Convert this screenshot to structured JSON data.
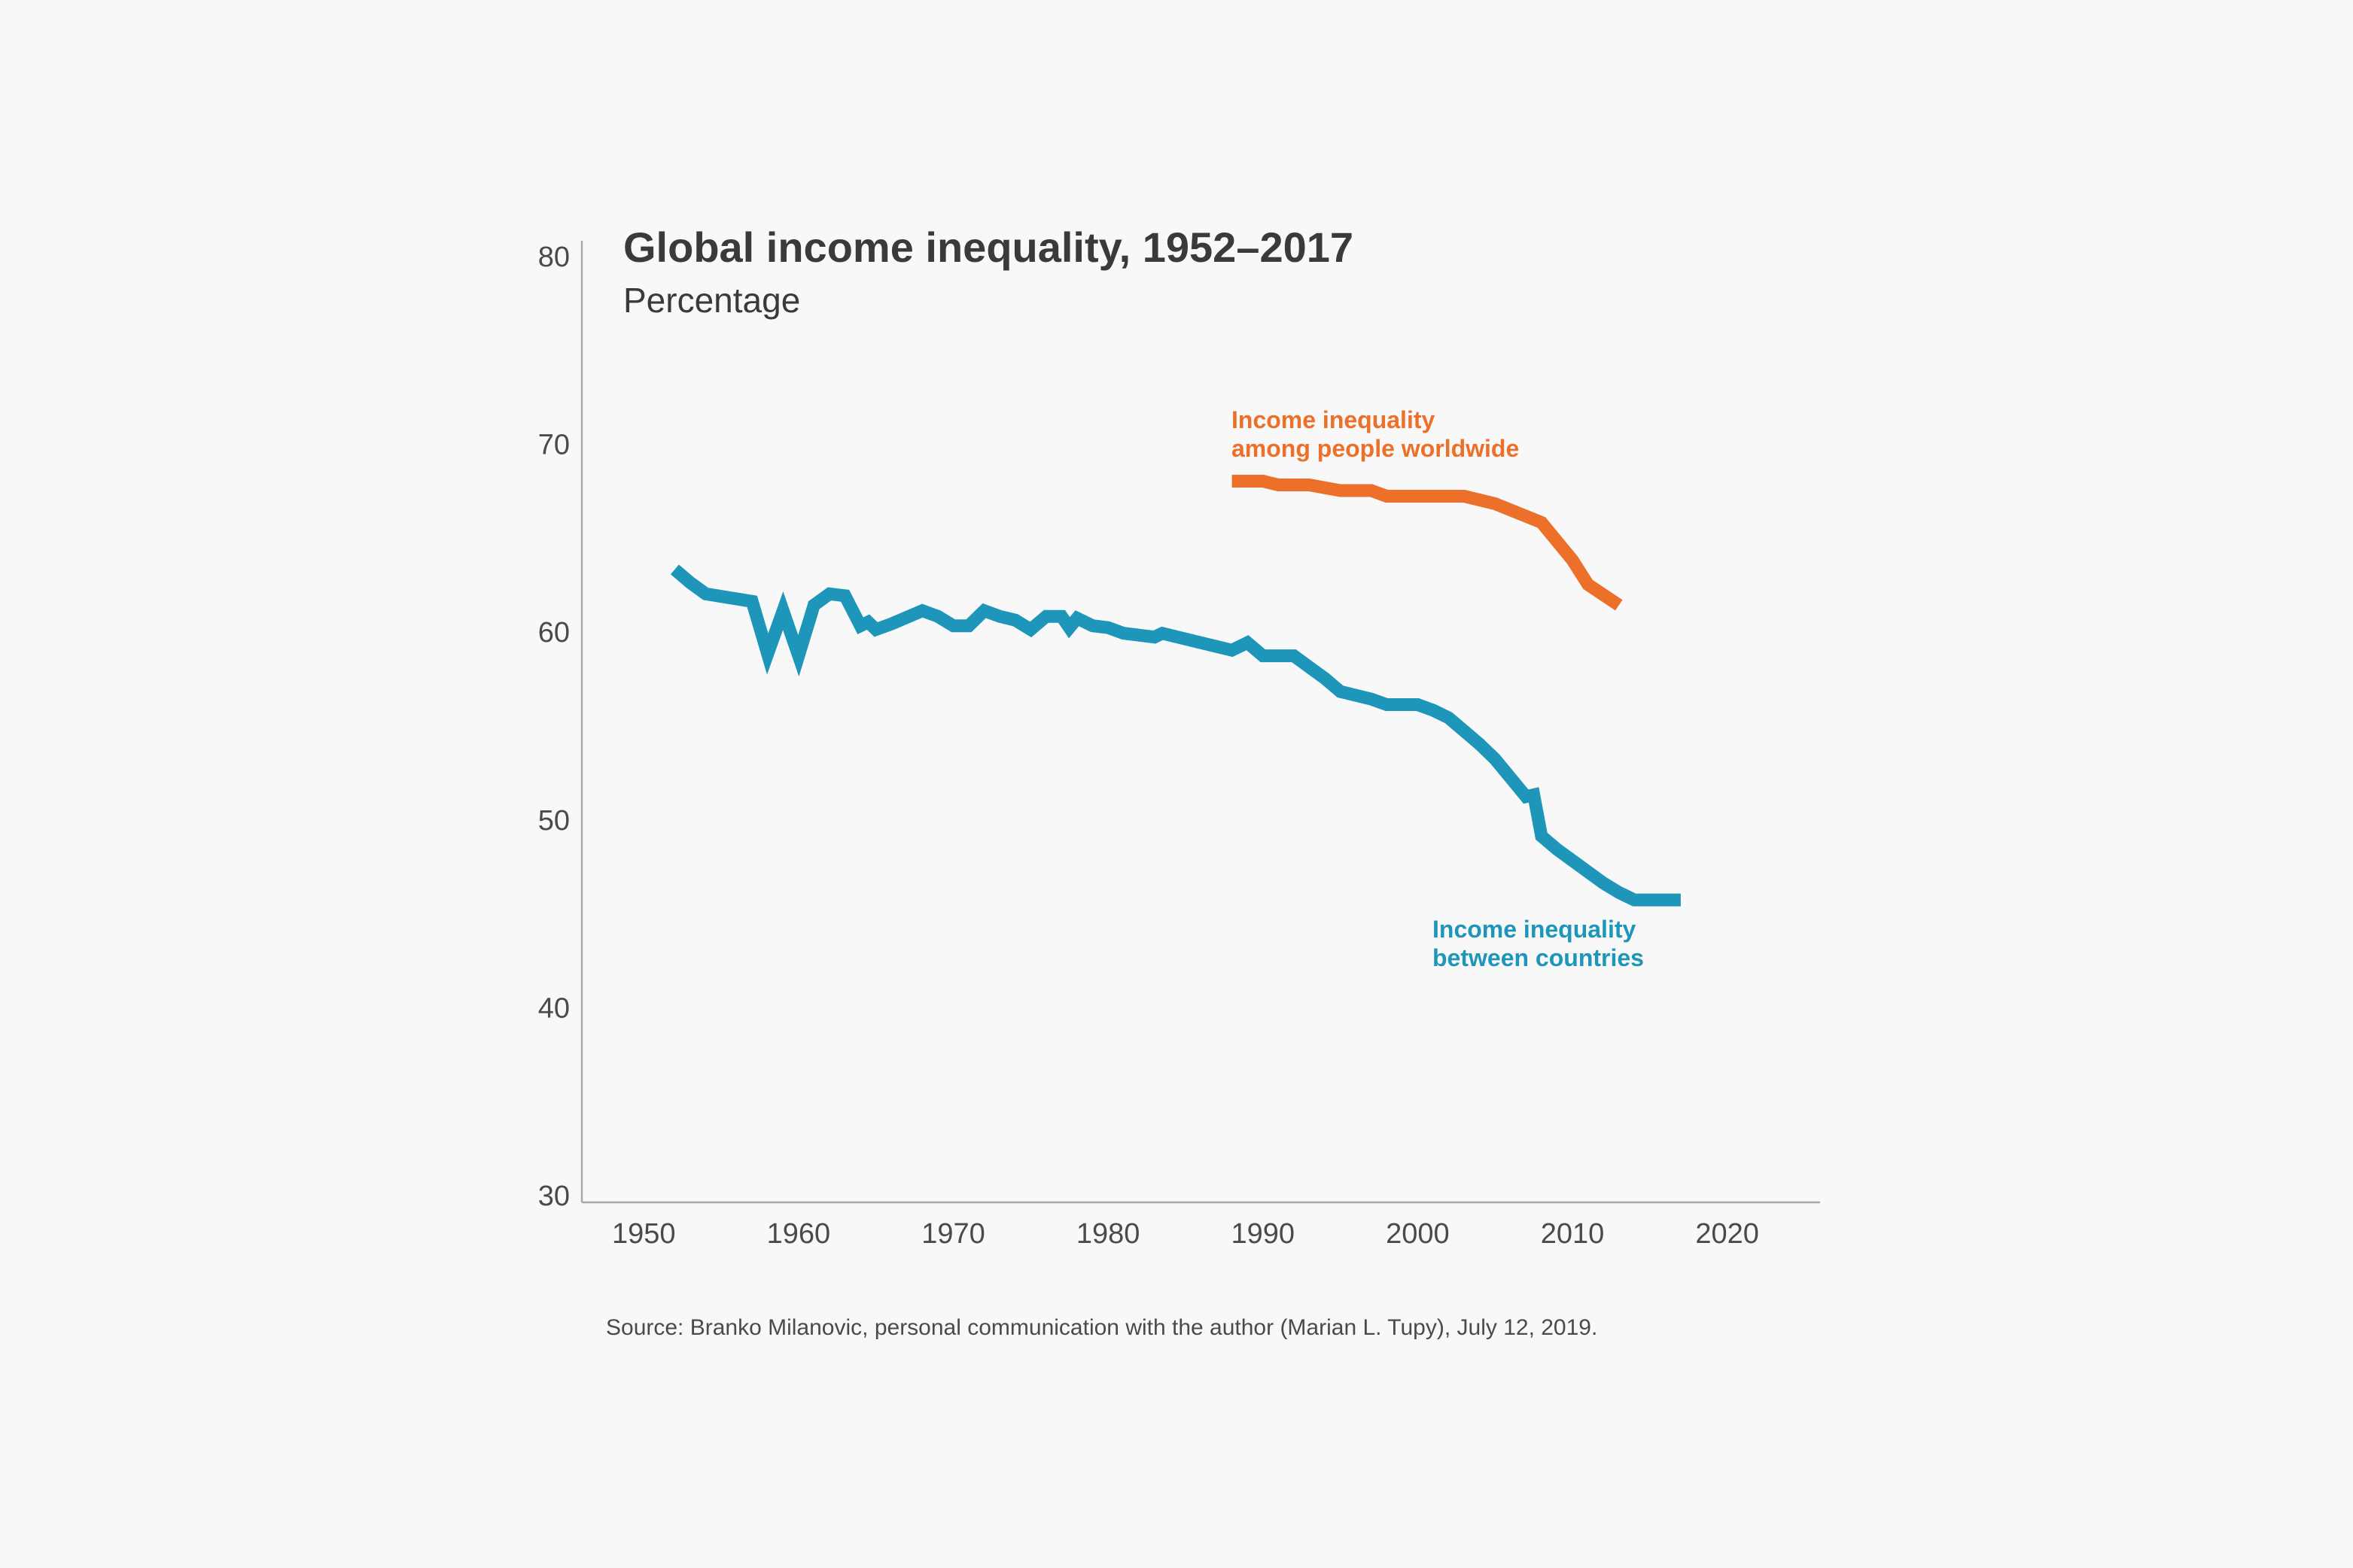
{
  "chart_data": {
    "type": "line",
    "title": "Global income inequality, 1952–2017",
    "subtitle": "Percentage",
    "xlabel": "",
    "ylabel": "Percentage",
    "xlim": [
      1946,
      2026
    ],
    "ylim": [
      30,
      80
    ],
    "x_ticks": [
      1950,
      1960,
      1970,
      1980,
      1990,
      2000,
      2010,
      2020
    ],
    "y_ticks": [
      30,
      40,
      50,
      60,
      70,
      80
    ],
    "source": "Source: Branko Milanovic, personal communication with the author (Marian L. Tupy), July 12, 2019.",
    "series": [
      {
        "name": "Income inequality among people worldwide",
        "label_lines": [
          "Income inequality",
          "among people worldwide"
        ],
        "color": "#ec6f2a",
        "x": [
          1988,
          1990,
          1991,
          1993,
          1995,
          1997,
          1998,
          2000,
          2003,
          2005,
          2008,
          2010,
          2011,
          2013
        ],
        "y": [
          68,
          68,
          67.8,
          67.8,
          67.5,
          67.5,
          67.2,
          67.2,
          67.2,
          66.8,
          65.8,
          63.8,
          62.5,
          61.4
        ]
      },
      {
        "name": "Income inequality between countries",
        "label_lines": [
          "Income inequality",
          "between countries"
        ],
        "color": "#1e96ba",
        "x": [
          1952,
          1953,
          1954,
          1957,
          1958,
          1959,
          1960,
          1961,
          1962,
          1963,
          1964,
          1964.5,
          1965,
          1966,
          1968,
          1969,
          1970,
          1971,
          1972,
          1973,
          1974,
          1975,
          1976,
          1977,
          1977.5,
          1978,
          1979,
          1980,
          1981,
          1982,
          1983,
          1983.5,
          1984,
          1985,
          1986,
          1987,
          1988,
          1989,
          1990,
          1991,
          1992,
          1993,
          1994,
          1995,
          1996,
          1997,
          1998,
          1999,
          2000,
          2001,
          2002,
          2003,
          2004,
          2005,
          2006,
          2007,
          2007.5,
          2008,
          2009,
          2010,
          2011,
          2012,
          2013,
          2014,
          2015,
          2016,
          2017
        ],
        "y": [
          63.3,
          62.6,
          62.0,
          61.6,
          58.8,
          61.1,
          58.7,
          61.4,
          62.0,
          61.9,
          60.3,
          60.5,
          60.1,
          60.4,
          61.1,
          60.8,
          60.3,
          60.3,
          61.1,
          60.8,
          60.6,
          60.1,
          60.8,
          60.8,
          60.2,
          60.7,
          60.3,
          60.2,
          59.9,
          59.8,
          59.7,
          59.9,
          59.8,
          59.6,
          59.4,
          59.2,
          59.0,
          59.4,
          58.7,
          58.7,
          58.7,
          58.1,
          57.5,
          56.8,
          56.6,
          56.4,
          56.1,
          56.1,
          56.1,
          55.8,
          55.4,
          54.7,
          54.0,
          53.2,
          52.2,
          51.2,
          51.3,
          49.1,
          48.4,
          47.8,
          47.2,
          46.6,
          46.1,
          45.7,
          45.7,
          45.7,
          45.7
        ]
      }
    ]
  }
}
